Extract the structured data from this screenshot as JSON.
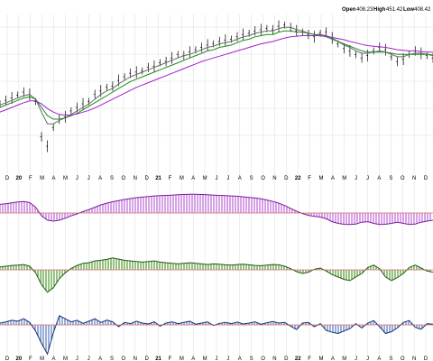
{
  "ohlc": {
    "open_label": "Open",
    "open_value": "408.23",
    "high_label": "High",
    "high_value": "451.42",
    "low_label": "Low",
    "low_value": "408.42"
  },
  "colors": {
    "background": "#ffffff",
    "grid": "#dcdcdc",
    "price_bars": "#000000",
    "ma_short": "#6b6b6b",
    "ma_mid": "#1e8a1e",
    "ma_long": "#a020d0",
    "panel1_fill": "#c77ddd",
    "panel1_line": "#7a1e9a",
    "panel2_fill": "#6aa84f",
    "panel2_line": "#1f5c12",
    "panel3_fill": "#6f8fc7",
    "panel3_line": "#16306f",
    "zero_line": "#d46a6a"
  },
  "chart_data": [
    {
      "type": "line",
      "panel": "price",
      "xlabel": "",
      "ylabel": "",
      "grid": true,
      "x_ticks": [
        "D",
        "20",
        "F",
        "M",
        "A",
        "M",
        "J",
        "J",
        "A",
        "S",
        "O",
        "N",
        "D",
        "21",
        "F",
        "M",
        "A",
        "M",
        "J",
        "J",
        "A",
        "S",
        "O",
        "N",
        "D",
        "22",
        "F",
        "M",
        "A",
        "M",
        "J",
        "J",
        "A",
        "S",
        "O",
        "N",
        "D"
      ],
      "year_ticks": [
        "20",
        "21",
        "22"
      ],
      "ylim": [
        200,
        470
      ],
      "series": [
        {
          "role": "price",
          "values": [
            318,
            324,
            328,
            333,
            338,
            334,
            322,
            262,
            246,
            278,
            292,
            296,
            306,
            312,
            318,
            322,
            334,
            340,
            346,
            348,
            358,
            364,
            370,
            372,
            374,
            380,
            382,
            388,
            390,
            396,
            402,
            400,
            406,
            410,
            414,
            418,
            420,
            424,
            426,
            428,
            432,
            436,
            438,
            442,
            444,
            446,
            444,
            450,
            452,
            448,
            442,
            440,
            436,
            432,
            438,
            440,
            430,
            420,
            412,
            408,
            402,
            396,
            400,
            408,
            414,
            410,
            398,
            390,
            394,
            402,
            408,
            404,
            400,
            396
          ]
        },
        {
          "role": "ma_short",
          "values": [
            316,
            320,
            324,
            328,
            332,
            334,
            326,
            304,
            284,
            284,
            290,
            294,
            300,
            306,
            312,
            318,
            326,
            334,
            340,
            344,
            352,
            358,
            364,
            368,
            372,
            376,
            380,
            384,
            388,
            392,
            396,
            400,
            402,
            406,
            410,
            414,
            416,
            420,
            422,
            424,
            428,
            432,
            434,
            438,
            440,
            442,
            442,
            446,
            448,
            448,
            444,
            442,
            438,
            436,
            436,
            434,
            430,
            424,
            418,
            414,
            408,
            404,
            404,
            406,
            408,
            406,
            402,
            398,
            398,
            402,
            404,
            404,
            402,
            400
          ]
        },
        {
          "role": "ma_mid",
          "values": [
            312,
            316,
            320,
            324,
            328,
            330,
            326,
            312,
            298,
            292,
            292,
            294,
            298,
            302,
            308,
            314,
            320,
            326,
            332,
            338,
            344,
            350,
            356,
            360,
            364,
            368,
            372,
            376,
            380,
            384,
            388,
            392,
            396,
            400,
            404,
            408,
            410,
            414,
            416,
            418,
            422,
            426,
            428,
            432,
            434,
            436,
            436,
            440,
            442,
            442,
            440,
            440,
            438,
            436,
            434,
            432,
            428,
            424,
            420,
            416,
            412,
            408,
            406,
            406,
            406,
            406,
            404,
            402,
            402,
            402,
            402,
            402,
            402,
            401
          ]
        },
        {
          "role": "ma_long",
          "values": [
            304,
            308,
            312,
            316,
            320,
            323,
            323,
            318,
            310,
            304,
            300,
            299,
            299,
            301,
            304,
            307,
            311,
            316,
            321,
            326,
            331,
            336,
            341,
            346,
            350,
            354,
            358,
            362,
            366,
            370,
            374,
            378,
            382,
            386,
            390,
            393,
            396,
            399,
            402,
            405,
            408,
            411,
            414,
            417,
            420,
            422,
            424,
            427,
            430,
            432,
            433,
            434,
            434,
            434,
            434,
            433,
            431,
            429,
            427,
            424,
            422,
            419,
            417,
            416,
            415,
            414,
            412,
            410,
            409,
            408,
            408,
            407,
            406,
            406
          ]
        }
      ]
    },
    {
      "type": "area",
      "panel": "indicator-1",
      "ylim": [
        -10,
        10
      ],
      "values": [
        3,
        3.2,
        3.5,
        3.8,
        4,
        3.6,
        2,
        -1,
        -2.5,
        -2.8,
        -2.5,
        -1.8,
        -1,
        -0.3,
        0.5,
        1.2,
        2,
        2.8,
        3.4,
        3.9,
        4.3,
        4.7,
        5,
        5.3,
        5.5,
        5.7,
        5.9,
        6,
        6.1,
        6.2,
        6.3,
        6.4,
        6.5,
        6.5,
        6.4,
        6.3,
        6.2,
        6.1,
        6,
        5.9,
        5.8,
        5.6,
        5.4,
        5.2,
        4.9,
        4.5,
        4,
        3.4,
        2.6,
        1.6,
        0.6,
        -0.2,
        -0.8,
        -1.2,
        -1.4,
        -2,
        -3,
        -3.6,
        -3.9,
        -4,
        -3.8,
        -3.2,
        -3,
        -3.6,
        -4,
        -3.9,
        -3.6,
        -3.2,
        -3.6,
        -4,
        -3.8,
        -3.2,
        -2.8,
        -2.5
      ]
    },
    {
      "type": "area",
      "panel": "indicator-2",
      "ylim": [
        -10,
        10
      ],
      "values": [
        1,
        1.2,
        1.5,
        1.6,
        1.8,
        1.2,
        -1,
        -5,
        -7.5,
        -6,
        -3,
        -1,
        0.5,
        1.5,
        2.2,
        2.4,
        3,
        3.2,
        3.5,
        4,
        3.6,
        3.2,
        3,
        2.8,
        2.6,
        2.8,
        3,
        2.6,
        2.4,
        2.2,
        2,
        2.2,
        2.4,
        2.2,
        2,
        1.8,
        2,
        1.9,
        1.7,
        1.6,
        1.8,
        1.9,
        1.7,
        1.5,
        1.4,
        1.6,
        1.8,
        1.7,
        1.2,
        0.4,
        -0.6,
        -1.2,
        -0.8,
        0.2,
        0.6,
        -0.4,
        -1.6,
        -2.4,
        -3.2,
        -3.6,
        -2.4,
        -1.2,
        0.8,
        1.6,
        0.4,
        -2.4,
        -3.6,
        -2.6,
        -1.2,
        0.8,
        1.6,
        0.6,
        -0.4,
        -0.8
      ]
    },
    {
      "type": "area",
      "panel": "indicator-3",
      "ylim": [
        -10,
        10
      ],
      "values": [
        0.6,
        1,
        1.5,
        1.2,
        2,
        0.8,
        -2,
        -6,
        -9.5,
        -2.5,
        3,
        2,
        1,
        1.5,
        0.5,
        1.2,
        2,
        0.8,
        1.6,
        1,
        -0.6,
        0.8,
        0.4,
        1.2,
        0.6,
        0.3,
        1,
        -0.4,
        0.6,
        1,
        0.4,
        0.8,
        1.2,
        0.2,
        0.6,
        1,
        -0.2,
        0.5,
        0.8,
        0.4,
        0.9,
        0.3,
        0.6,
        1,
        0.2,
        0.7,
        1.1,
        0.6,
        0.8,
        -0.4,
        -1.5,
        0.6,
        0.8,
        -0.6,
        0.4,
        -1.8,
        -2.4,
        -2.8,
        -2,
        -1.2,
        0.4,
        -1,
        0.6,
        1.4,
        -0.6,
        -2.8,
        -2.2,
        -1,
        0.8,
        1.4,
        -0.8,
        -1.4,
        0.4,
        0.2
      ]
    }
  ]
}
